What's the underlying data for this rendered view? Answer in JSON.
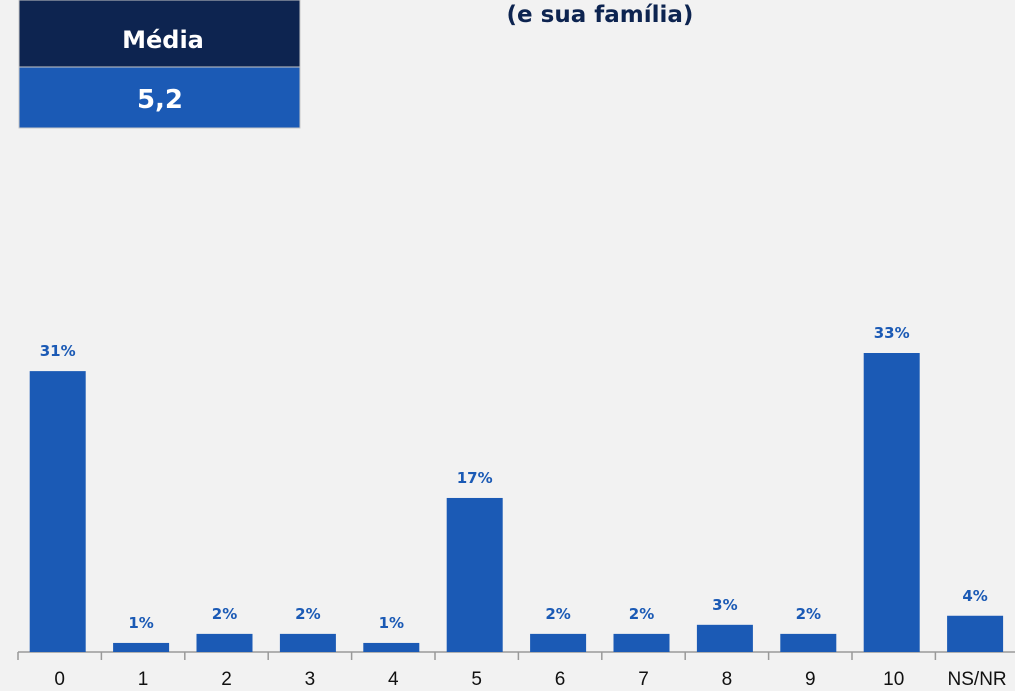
{
  "chart_data": {
    "type": "bar",
    "title": "(e sua família)",
    "summary": {
      "label": "Média",
      "value": "5,2"
    },
    "categories": [
      "0",
      "1",
      "2",
      "3",
      "4",
      "5",
      "6",
      "7",
      "8",
      "9",
      "10",
      "NS/NR"
    ],
    "values": [
      31,
      1,
      2,
      2,
      1,
      17,
      2,
      2,
      3,
      2,
      33,
      4
    ],
    "value_labels": [
      "31%",
      "1%",
      "2%",
      "2%",
      "1%",
      "17%",
      "2%",
      "2%",
      "3%",
      "2%",
      "33%",
      "4%"
    ],
    "color": "#1b5ab5"
  }
}
